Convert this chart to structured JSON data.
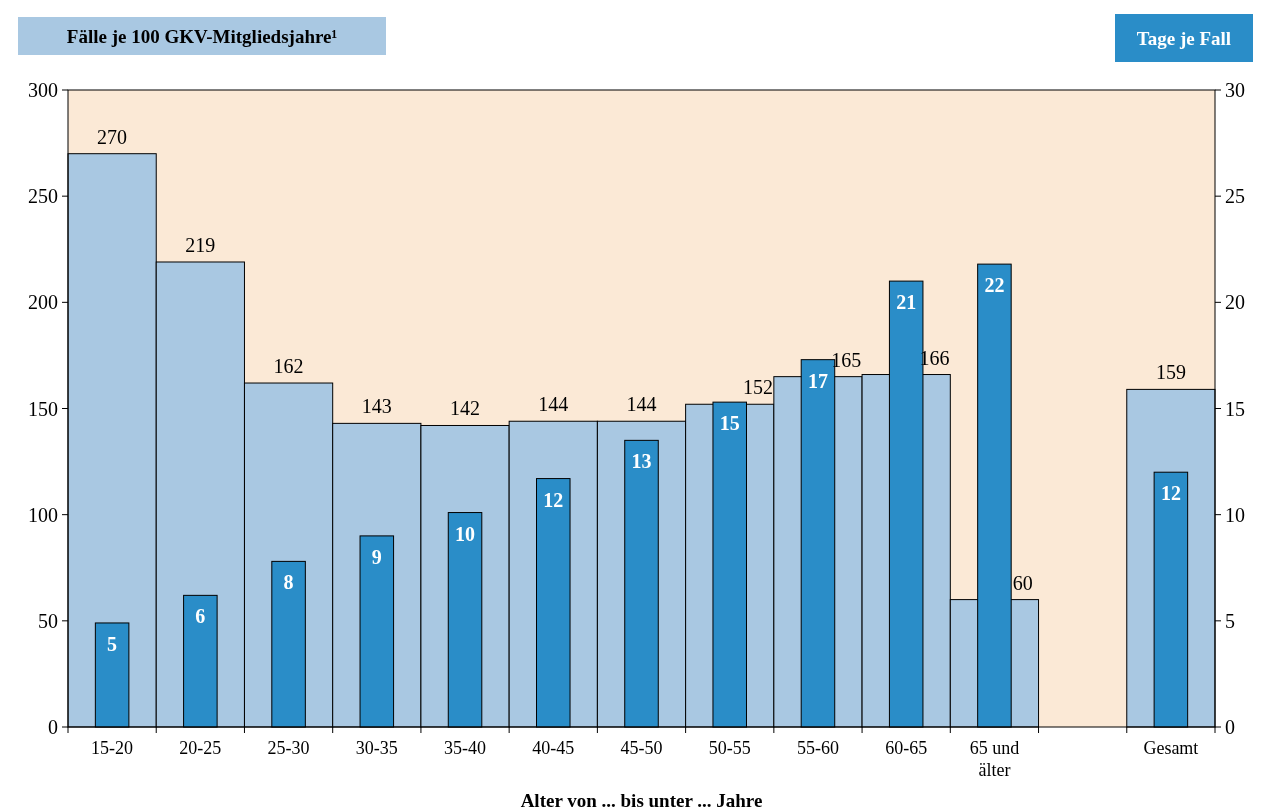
{
  "chart_data": {
    "type": "bar",
    "ylabel": "Fälle je 100 GKV-Mitgliedsjahre¹",
    "y2label": "Tage je Fall",
    "xlabel": "Alter von ... bis unter ... Jahre",
    "categories": [
      "15-20",
      "20-25",
      "25-30",
      "30-35",
      "35-40",
      "40-45",
      "45-50",
      "50-55",
      "55-60",
      "60-65",
      "65 und älter",
      null,
      "Gesamt"
    ],
    "series": [
      {
        "color": "#a9c8e2",
        "values": [
          270,
          219,
          162,
          143,
          142,
          144,
          144,
          152,
          165,
          166,
          60,
          null,
          159
        ],
        "value_labels": [
          "270",
          "219",
          "162",
          "143",
          "142",
          "144",
          "144",
          "152",
          "165",
          "166",
          "60",
          null,
          "159"
        ]
      },
      {
        "color": "#2a8dc8",
        "axis": "y2",
        "values": [
          4.9,
          6.2,
          7.8,
          9.0,
          10.1,
          11.7,
          13.5,
          15.3,
          17.3,
          21.0,
          21.8,
          null,
          12.0
        ],
        "value_labels": [
          "5",
          "6",
          "8",
          "9",
          "10",
          "12",
          "13",
          "15",
          "17",
          "21",
          "22",
          null,
          "12"
        ]
      }
    ],
    "ylim": [
      0,
      300
    ],
    "yticks": [
      0,
      50,
      100,
      150,
      200,
      250,
      300
    ],
    "y2lim": [
      0,
      30
    ],
    "y2ticks": [
      0,
      5,
      10,
      15,
      20,
      25,
      30
    ],
    "grid": false
  }
}
